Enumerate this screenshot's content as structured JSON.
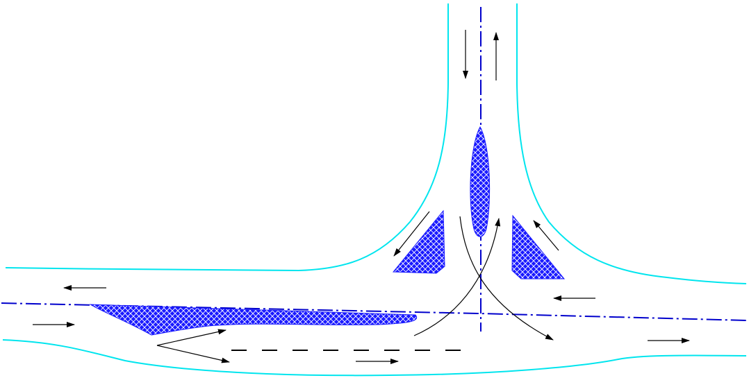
{
  "diagram": {
    "description_text": "",
    "colors": {
      "road_edge": "#00e5ee",
      "centerline": "#0000cc",
      "island_fill": "#1a1aff",
      "island_pattern_line": "#ffffff",
      "flow_arrow": "#000000",
      "background": "#ffffff"
    },
    "elements": {
      "road_edges": [
        "north-road-left-edge",
        "north-road-right-edge",
        "main-road-north-edge",
        "main-road-south-edge"
      ],
      "centerlines": [
        "main-road-centerline",
        "north-road-centerline"
      ],
      "islands": [
        "north-center-island",
        "left-triangle-island",
        "right-triangle-island",
        "main-road-median-island"
      ],
      "lane_marking": "turn-lane-dashed-line",
      "arrows": [
        "southbound",
        "northbound",
        "left-turn-out",
        "right-turn-in",
        "westbound-upper",
        "eastbound-left",
        "westbound-right",
        "eastbound-right",
        "left-turn-in",
        "right-turn-out",
        "merge-in",
        "merge-out",
        "turn-lane"
      ]
    }
  }
}
